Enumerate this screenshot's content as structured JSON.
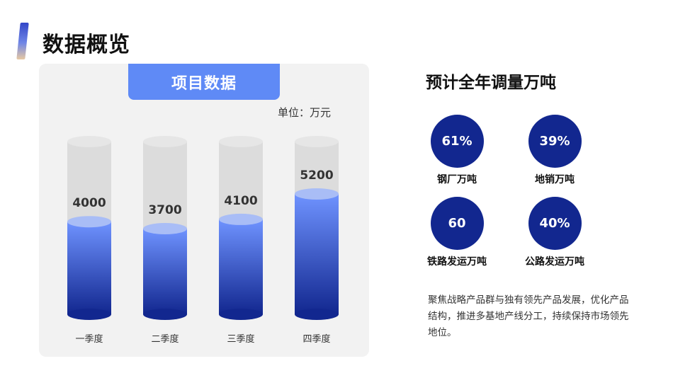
{
  "page": {
    "title": "数据概览"
  },
  "panel": {
    "tab_label": "项目数据",
    "unit_label": "单位：万元"
  },
  "chart_data": {
    "type": "bar",
    "categories": [
      "一季度",
      "二季度",
      "三季度",
      "四季度"
    ],
    "values": [
      4000,
      3700,
      4100,
      5200
    ],
    "data_labels": [
      "4000",
      "3700",
      "4100",
      "5200"
    ],
    "ylim": [
      0,
      7000
    ],
    "grid": false,
    "colors": {
      "fill_top": "#6f93ff",
      "fill_bottom": "#12278f",
      "cap": "#a9bdf6",
      "track": "#dcdcdc"
    }
  },
  "right": {
    "title": "预计全年调量万吨",
    "stats": [
      {
        "value": "61%",
        "label": "钢厂万吨"
      },
      {
        "value": "39%",
        "label": "地销万吨"
      },
      {
        "value": "60",
        "label": "铁路发运万吨"
      },
      {
        "value": "40%",
        "label": "公路发运万吨"
      }
    ],
    "description": "聚焦战略产品群与独有领先产品发展，优化产品结构，推进多基地产线分工，持续保持市场领先地位。"
  },
  "colors": {
    "accent": "#5f8af6",
    "circle": "#12278f"
  }
}
